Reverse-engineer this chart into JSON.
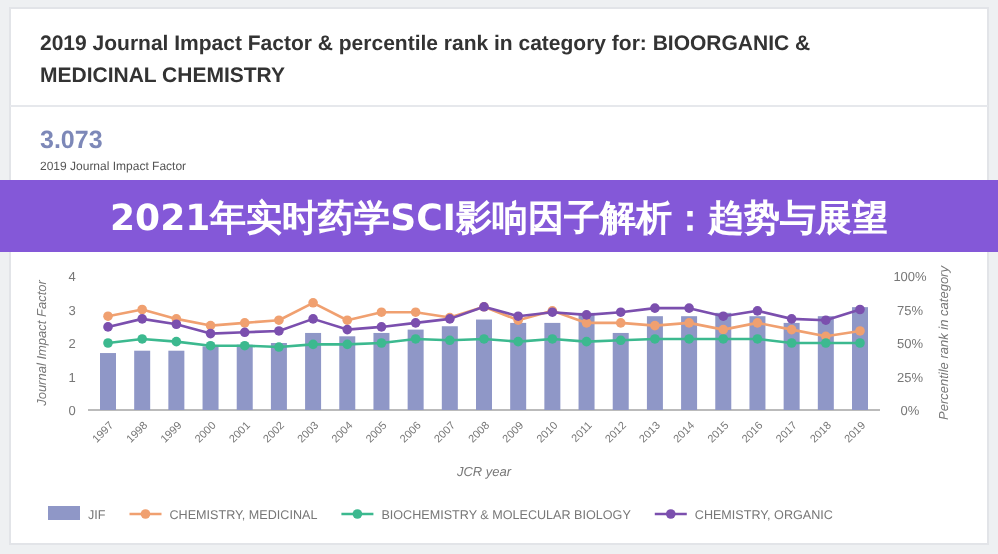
{
  "chart_data": {
    "type": "bar",
    "title": "2019 Journal Impact Factor & percentile rank in category for: BIOORGANIC & MEDICINAL CHEMISTRY",
    "subtitle": "3.073",
    "annotations": [
      "2019 Journal Impact Factor",
      "2021年实时药学SCI影响因子解析：趋势与展望"
    ],
    "xlabel": "JCR year",
    "ylabel": "Journal Impact Factor",
    "y2label": "Percentile rank in category",
    "categories": [
      "1997",
      "1998",
      "1999",
      "2000",
      "2001",
      "2002",
      "2003",
      "2004",
      "2005",
      "2006",
      "2007",
      "2008",
      "2009",
      "2010",
      "2011",
      "2012",
      "2013",
      "2014",
      "2015",
      "2016",
      "2017",
      "2018",
      "2019"
    ],
    "ylim": [
      0,
      4
    ],
    "yticks": [
      0,
      1,
      2,
      3,
      4
    ],
    "y2lim": [
      0,
      100
    ],
    "y2ticks": [
      {
        "value": 0,
        "label": "0%"
      },
      {
        "value": 25,
        "label": "25%"
      },
      {
        "value": 50,
        "label": "50%"
      },
      {
        "value": 75,
        "label": "75%"
      },
      {
        "value": 100,
        "label": "100%"
      }
    ],
    "legend": "bottom",
    "marker": "circle",
    "grid": false,
    "series": [
      {
        "name": "JIF",
        "color": "#8f97c7",
        "values": [
          1.7,
          1.77,
          1.77,
          1.9,
          1.95,
          2.0,
          2.3,
          2.2,
          2.3,
          2.4,
          2.5,
          2.7,
          2.6,
          2.6,
          2.9,
          2.3,
          2.8,
          2.8,
          2.9,
          2.8,
          2.6,
          2.8,
          3.07
        ]
      },
      {
        "name": "CHEMISTRY, MEDICINAL",
        "type": "line",
        "axis": "y2",
        "color": "#f0a070",
        "values": [
          70,
          75,
          68,
          63,
          65,
          67,
          80,
          67,
          73,
          73,
          69,
          77,
          67,
          74,
          65,
          65,
          63,
          65,
          60,
          65,
          60,
          55,
          59
        ]
      },
      {
        "name": "BIOCHEMISTRY & MOLECULAR BIOLOGY",
        "type": "line",
        "axis": "y2",
        "color": "#3cb98f",
        "values": [
          50,
          53,
          51,
          48,
          48,
          47,
          49,
          49,
          50,
          53,
          52,
          53,
          51,
          53,
          51,
          52,
          53,
          53,
          53,
          53,
          50,
          50,
          50
        ]
      },
      {
        "name": "CHEMISTRY, ORGANIC",
        "type": "line",
        "axis": "y2",
        "color": "#7b4fae",
        "values": [
          62,
          68,
          64,
          57,
          58,
          59,
          68,
          60,
          62,
          65,
          68,
          77,
          70,
          73,
          71,
          73,
          76,
          76,
          70,
          74,
          68,
          67,
          75
        ]
      }
    ]
  }
}
